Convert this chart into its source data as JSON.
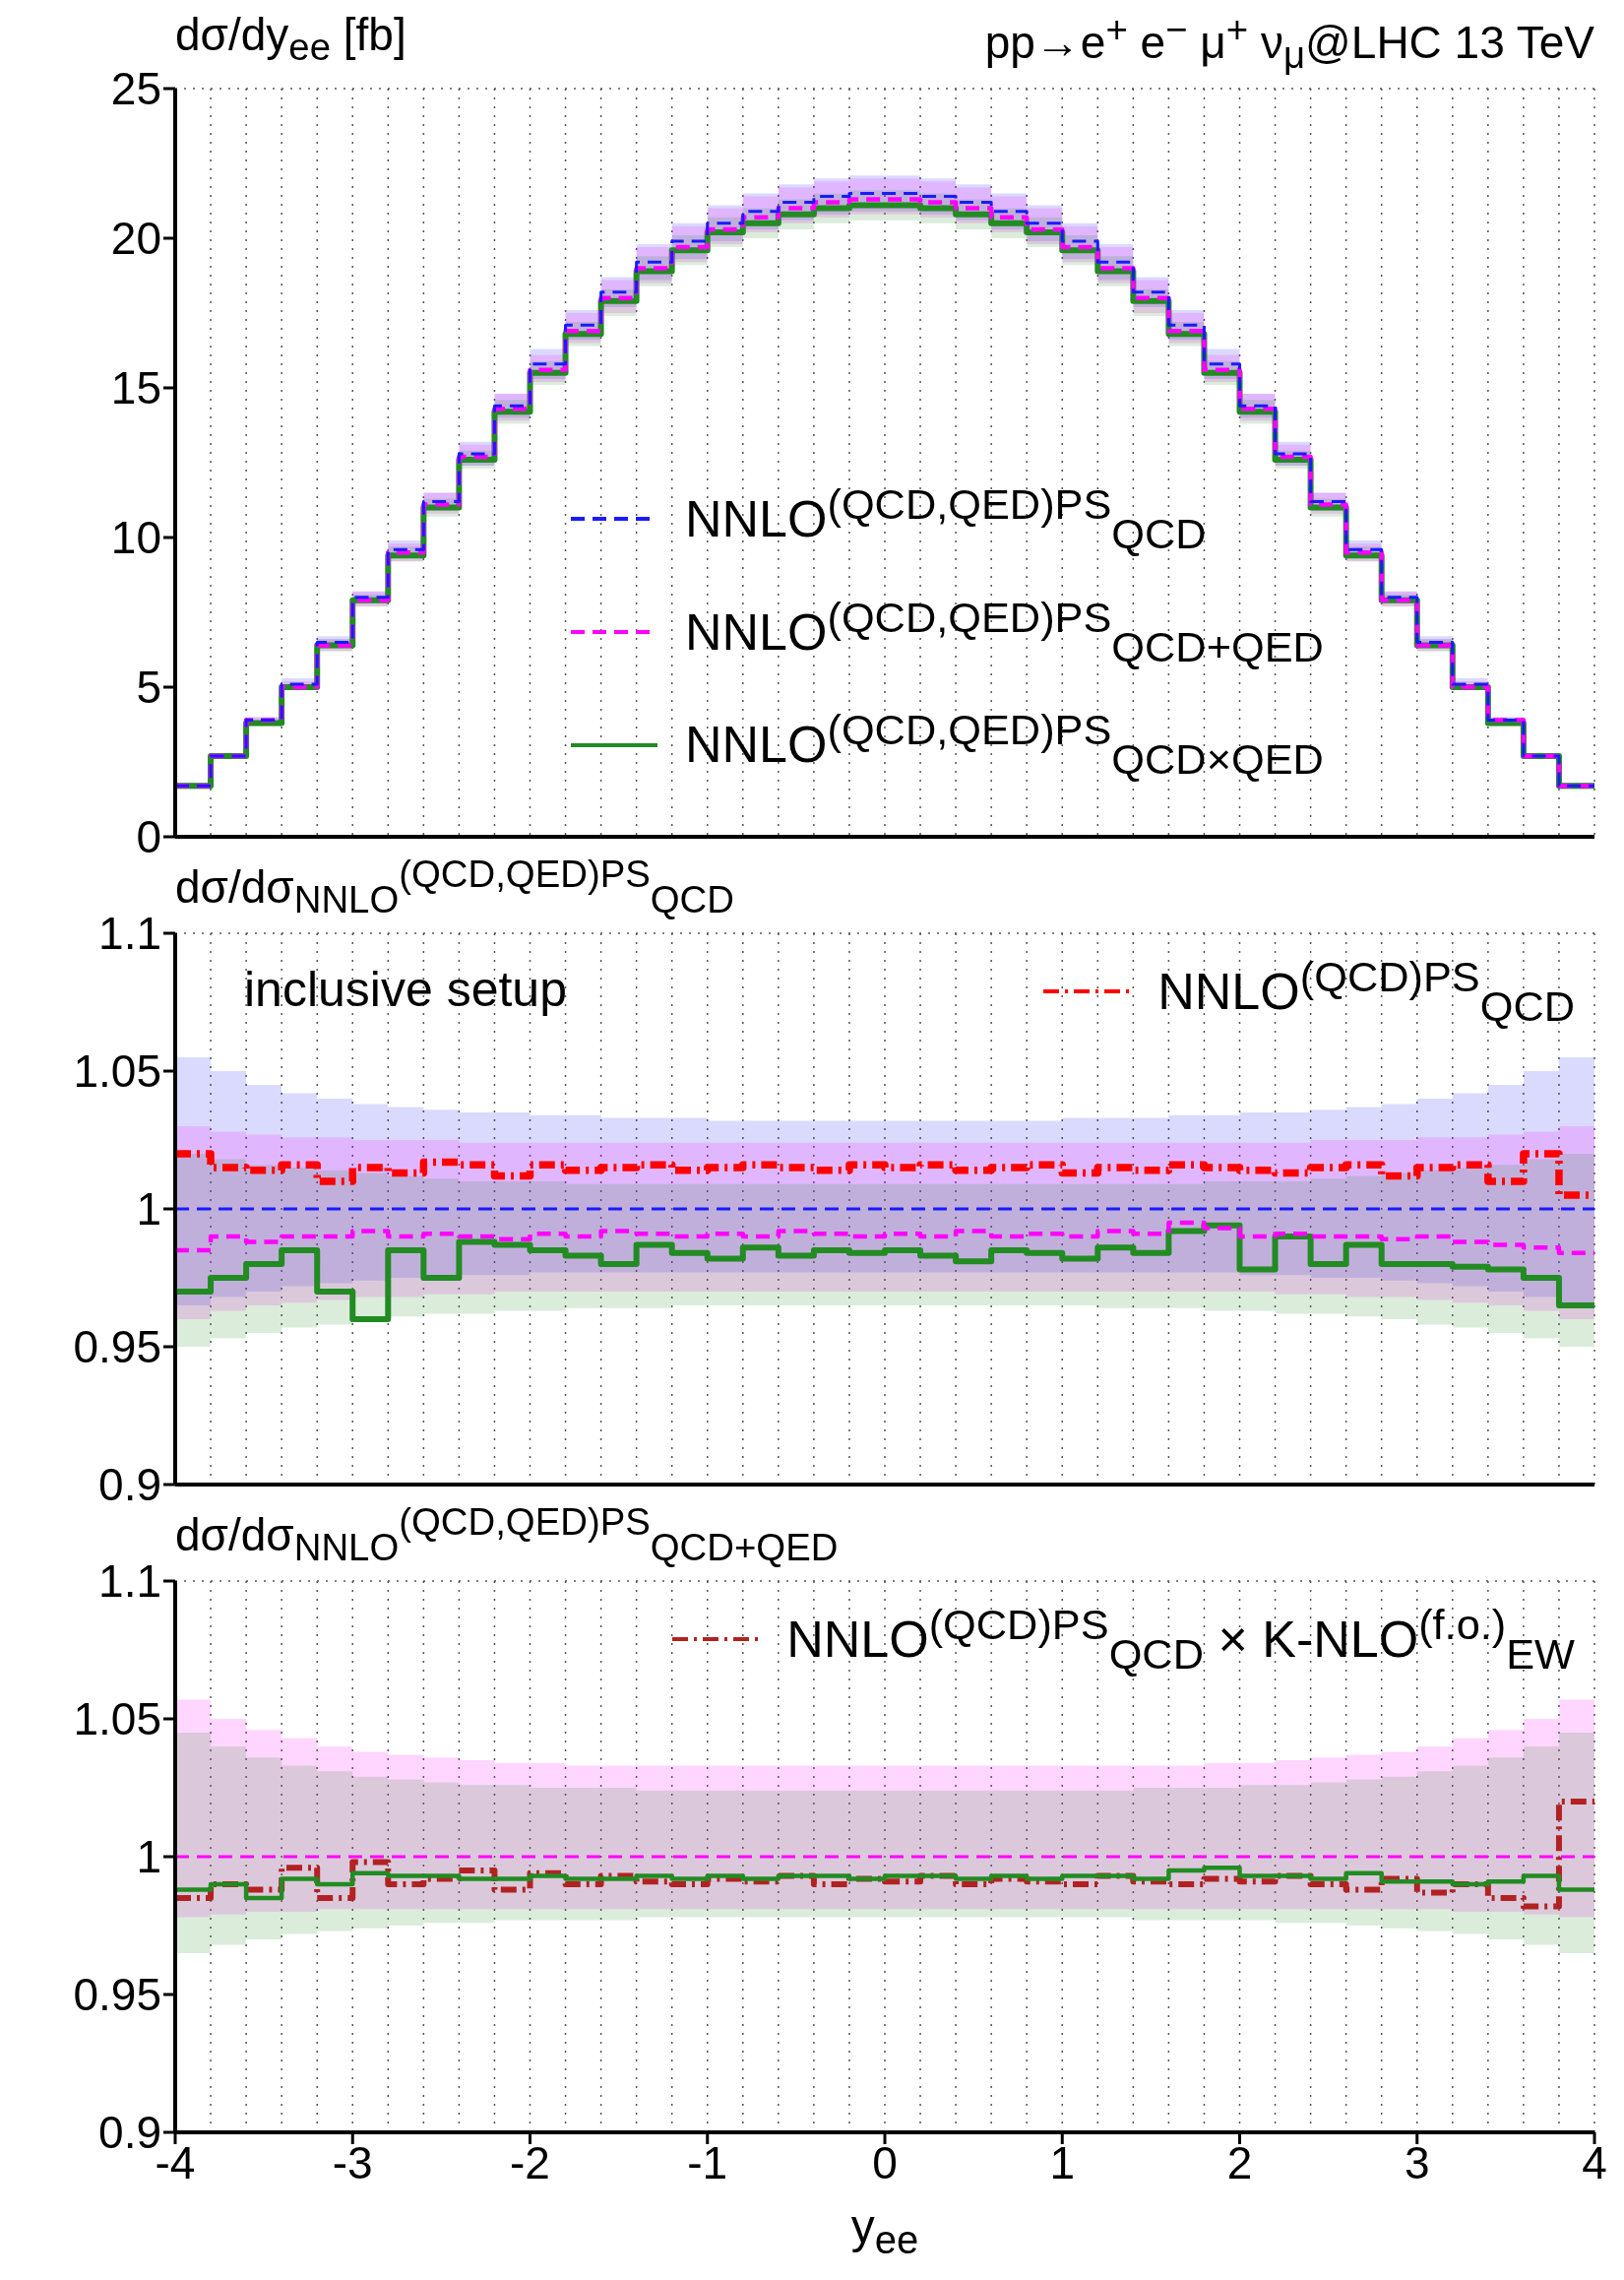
{
  "chart_data": [
    {
      "type": "step",
      "title": "pp→e$^{+}$ e$^{−}$ μ$^{+}$ ν$_{μ}$@LHC 13 TeV",
      "ylabel": "dσ/dy$_{ee}$ [fb]",
      "xlim": [
        -4,
        4
      ],
      "xticks": [
        -4,
        -3,
        -2,
        -1,
        0,
        1,
        2,
        3,
        4
      ],
      "ylim": [
        0,
        25
      ],
      "yticks": [
        0,
        5,
        10,
        15,
        20,
        25
      ],
      "grid": true,
      "legend": "bottom",
      "tick_labels": "y",
      "x": [
        -4,
        -3.8,
        -3.6,
        -3.4,
        -3.2,
        -3,
        -2.8,
        -2.6,
        -2.4,
        -2.2,
        -2,
        -1.8,
        -1.6,
        -1.4,
        -1.2,
        -1,
        -0.8,
        -0.6,
        -0.4,
        -0.2,
        0,
        0.2,
        0.4,
        0.6,
        0.8,
        1,
        1.2,
        1.4,
        1.6,
        1.8,
        2,
        2.2,
        2.4,
        2.6,
        2.8,
        3,
        3.2,
        3.4,
        3.6,
        3.8,
        4
      ],
      "series": [
        {
          "name": "NNLO$^{(QCD,QED)PS}$$_{QCD}$",
          "color": "#1a1aff",
          "line_style": "dashed",
          "values": [
            1.7,
            2.7,
            3.9,
            5.1,
            6.5,
            8,
            9.6,
            11.2,
            12.8,
            14.4,
            15.8,
            17.1,
            18.2,
            19.2,
            19.9,
            20.5,
            20.9,
            21.2,
            21.4,
            21.5,
            21.5,
            21.4,
            21.2,
            20.9,
            20.5,
            19.9,
            19.2,
            18.2,
            17.1,
            15.8,
            14.4,
            12.8,
            11.2,
            9.6,
            8,
            6.5,
            5.1,
            3.9,
            2.7,
            1.7,
            1.7
          ],
          "lower": [
            1.6,
            2.6,
            3.8,
            4.9,
            6.3,
            7.8,
            9.3,
            10.9,
            12.4,
            14,
            15.3,
            16.6,
            17.7,
            18.6,
            19.3,
            19.9,
            20.3,
            20.6,
            20.8,
            20.9,
            20.9,
            20.8,
            20.6,
            20.3,
            19.9,
            19.3,
            18.6,
            17.7,
            16.6,
            15.3,
            14,
            12.4,
            10.9,
            9.3,
            7.8,
            6.3,
            4.9,
            3.8,
            2.6,
            1.6,
            1.6
          ],
          "upper": [
            1.8,
            2.8,
            4,
            5.3,
            6.7,
            8.2,
            9.9,
            11.5,
            13.2,
            14.8,
            16.3,
            17.6,
            18.7,
            19.8,
            20.5,
            21.1,
            21.5,
            21.8,
            22,
            22.1,
            22.1,
            22,
            21.8,
            21.5,
            21.1,
            20.5,
            19.8,
            18.7,
            17.6,
            16.3,
            14.8,
            13.2,
            11.5,
            9.9,
            8.2,
            6.7,
            5.3,
            4,
            2.8,
            1.8,
            1.8
          ]
        },
        {
          "name": "NNLO$^{(QCD,QED)PS}$$_{QCD+QED}$",
          "color": "#ff00ff",
          "line_style": "dashed",
          "values": [
            1.7,
            2.7,
            3.9,
            5,
            6.4,
            7.9,
            9.5,
            11.1,
            12.7,
            14.3,
            15.6,
            16.9,
            18,
            19,
            19.7,
            20.3,
            20.7,
            21,
            21.2,
            21.3,
            21.3,
            21.2,
            21,
            20.7,
            20.3,
            19.7,
            19,
            18,
            16.9,
            15.6,
            14.3,
            12.7,
            11.1,
            9.5,
            7.9,
            6.4,
            5,
            3.9,
            2.7,
            1.7,
            1.7
          ],
          "lower": [
            1.6,
            2.6,
            3.8,
            4.9,
            6.2,
            7.7,
            9.2,
            10.8,
            12.4,
            13.9,
            15.2,
            16.5,
            17.5,
            18.5,
            19.2,
            19.8,
            20.2,
            20.5,
            20.7,
            20.8,
            20.8,
            20.7,
            20.5,
            20.2,
            19.8,
            19.2,
            18.5,
            17.5,
            16.5,
            15.2,
            13.9,
            12.4,
            10.8,
            9.2,
            7.7,
            6.2,
            4.9,
            3.8,
            2.6,
            1.6,
            1.6
          ],
          "upper": [
            1.8,
            2.8,
            4,
            5.2,
            6.6,
            8.2,
            9.8,
            11.5,
            13.1,
            14.8,
            16.1,
            17.5,
            18.6,
            19.7,
            20.4,
            21,
            21.4,
            21.7,
            21.9,
            22,
            22,
            21.9,
            21.7,
            21.4,
            21,
            20.4,
            19.7,
            18.6,
            17.5,
            16.1,
            14.8,
            13.1,
            11.5,
            9.8,
            8.2,
            6.6,
            5.2,
            4,
            2.8,
            1.8,
            1.8
          ]
        },
        {
          "name": "NNLO$^{(QCD,QED)PS}$$_{QCD×QED}$",
          "color": "#228b22",
          "line_style": "solid",
          "values": [
            1.7,
            2.7,
            3.8,
            5,
            6.4,
            7.9,
            9.4,
            11,
            12.6,
            14.2,
            15.5,
            16.8,
            17.9,
            18.9,
            19.6,
            20.2,
            20.5,
            20.8,
            21,
            21.1,
            21.1,
            21,
            20.8,
            20.5,
            20.2,
            19.6,
            18.9,
            17.9,
            16.8,
            15.5,
            14.2,
            12.6,
            11,
            9.4,
            7.9,
            6.4,
            5,
            3.8,
            2.7,
            1.7,
            1.7
          ],
          "lower": [
            1.6,
            2.6,
            3.7,
            4.9,
            6.2,
            7.7,
            9.2,
            10.7,
            12.3,
            13.8,
            15.1,
            16.4,
            17.4,
            18.4,
            19.1,
            19.7,
            20,
            20.3,
            20.5,
            20.6,
            20.6,
            20.5,
            20.3,
            20,
            19.7,
            19.1,
            18.4,
            17.4,
            16.4,
            15.1,
            13.8,
            12.3,
            10.7,
            9.2,
            7.7,
            6.2,
            4.9,
            3.7,
            2.6,
            1.6,
            1.6
          ],
          "upper": [
            1.7,
            2.8,
            3.9,
            5.1,
            6.6,
            8.1,
            9.7,
            11.3,
            12.9,
            14.6,
            15.9,
            17.2,
            18.3,
            19.4,
            20.1,
            20.7,
            21,
            21.3,
            21.5,
            21.6,
            21.6,
            21.5,
            21.3,
            21,
            20.7,
            20.1,
            19.4,
            18.3,
            17.2,
            15.9,
            14.6,
            12.9,
            11.3,
            9.7,
            8.1,
            6.6,
            5.1,
            3.9,
            2.8,
            1.7,
            1.7
          ]
        }
      ]
    },
    {
      "type": "step",
      "ylabel": "dσ/dσ$_{NNLO}$$^{(QCD,QED)PS}$$_{QCD}$",
      "annotations": [
        "inclusive setup"
      ],
      "xlim": [
        -4,
        4
      ],
      "xticks": [
        -4,
        -3,
        -2,
        -1,
        0,
        1,
        2,
        3,
        4
      ],
      "ylim": [
        0.9,
        1.1
      ],
      "yticks": [
        0.9,
        0.95,
        1,
        1.05,
        1.1
      ],
      "grid": true,
      "legend": "top right",
      "tick_labels": "y",
      "x": [
        -4,
        -3.8,
        -3.6,
        -3.4,
        -3.2,
        -3,
        -2.8,
        -2.6,
        -2.4,
        -2.2,
        -2,
        -1.8,
        -1.6,
        -1.4,
        -1.2,
        -1,
        -0.8,
        -0.6,
        -0.4,
        -0.2,
        0,
        0.2,
        0.4,
        0.6,
        0.8,
        1,
        1.2,
        1.4,
        1.6,
        1.8,
        2,
        2.2,
        2.4,
        2.6,
        2.8,
        3,
        3.2,
        3.4,
        3.6,
        3.8,
        4
      ],
      "series": [
        {
          "color": "#1a1aff",
          "line_style": "dashed",
          "values": [
            1,
            1,
            1,
            1,
            1,
            1,
            1,
            1,
            1,
            1,
            1,
            1,
            1,
            1,
            1,
            1,
            1,
            1,
            1,
            1,
            1,
            1,
            1,
            1,
            1,
            1,
            1,
            1,
            1,
            1,
            1,
            1,
            1,
            1,
            1,
            1,
            1,
            1,
            1,
            1,
            1
          ],
          "lower": [
            0.965,
            0.968,
            0.97,
            0.972,
            0.973,
            0.974,
            0.975,
            0.975,
            0.976,
            0.976,
            0.977,
            0.977,
            0.977,
            0.977,
            0.977,
            0.977,
            0.977,
            0.977,
            0.977,
            0.977,
            0.977,
            0.977,
            0.977,
            0.977,
            0.977,
            0.977,
            0.977,
            0.977,
            0.977,
            0.977,
            0.976,
            0.976,
            0.975,
            0.975,
            0.974,
            0.973,
            0.972,
            0.97,
            0.968,
            0.965,
            0.965
          ],
          "upper": [
            1.055,
            1.05,
            1.045,
            1.042,
            1.04,
            1.038,
            1.037,
            1.036,
            1.035,
            1.035,
            1.034,
            1.034,
            1.033,
            1.033,
            1.033,
            1.032,
            1.032,
            1.032,
            1.032,
            1.032,
            1.032,
            1.032,
            1.032,
            1.032,
            1.032,
            1.033,
            1.033,
            1.033,
            1.034,
            1.034,
            1.035,
            1.035,
            1.036,
            1.037,
            1.038,
            1.04,
            1.042,
            1.045,
            1.05,
            1.055,
            1.055
          ]
        },
        {
          "color": "#ff00ff",
          "line_style": "dashed",
          "values": [
            0.985,
            0.99,
            0.988,
            0.99,
            0.99,
            0.992,
            0.99,
            0.991,
            0.99,
            0.989,
            0.991,
            0.99,
            0.992,
            0.991,
            0.99,
            0.991,
            0.99,
            0.992,
            0.991,
            0.99,
            0.991,
            0.99,
            0.992,
            0.99,
            0.991,
            0.99,
            0.992,
            0.991,
            0.995,
            0.993,
            0.99,
            0.991,
            0.99,
            0.99,
            0.989,
            0.99,
            0.988,
            0.987,
            0.986,
            0.984,
            0.984
          ],
          "lower": [
            0.96,
            0.963,
            0.965,
            0.966,
            0.967,
            0.968,
            0.968,
            0.969,
            0.969,
            0.97,
            0.97,
            0.97,
            0.97,
            0.97,
            0.97,
            0.97,
            0.97,
            0.97,
            0.97,
            0.97,
            0.97,
            0.97,
            0.97,
            0.97,
            0.97,
            0.97,
            0.97,
            0.97,
            0.97,
            0.97,
            0.97,
            0.969,
            0.969,
            0.968,
            0.968,
            0.967,
            0.966,
            0.965,
            0.963,
            0.96,
            0.96
          ],
          "upper": [
            1.03,
            1.028,
            1.027,
            1.026,
            1.026,
            1.025,
            1.025,
            1.025,
            1.024,
            1.024,
            1.024,
            1.024,
            1.024,
            1.024,
            1.024,
            1.024,
            1.024,
            1.024,
            1.024,
            1.024,
            1.024,
            1.024,
            1.024,
            1.024,
            1.024,
            1.024,
            1.024,
            1.024,
            1.024,
            1.024,
            1.024,
            1.024,
            1.025,
            1.025,
            1.025,
            1.026,
            1.026,
            1.027,
            1.028,
            1.03,
            1.03
          ]
        },
        {
          "color": "#228b22",
          "line_style": "solid",
          "values": [
            0.97,
            0.975,
            0.98,
            0.985,
            0.97,
            0.96,
            0.985,
            0.975,
            0.988,
            0.987,
            0.985,
            0.983,
            0.98,
            0.987,
            0.984,
            0.982,
            0.986,
            0.983,
            0.985,
            0.984,
            0.985,
            0.983,
            0.981,
            0.985,
            0.984,
            0.982,
            0.986,
            0.984,
            0.992,
            0.994,
            0.978,
            0.99,
            0.98,
            0.987,
            0.98,
            0.98,
            0.979,
            0.978,
            0.975,
            0.965,
            0.965
          ],
          "lower": [
            0.95,
            0.953,
            0.955,
            0.957,
            0.958,
            0.96,
            0.961,
            0.962,
            0.962,
            0.963,
            0.963,
            0.964,
            0.964,
            0.964,
            0.965,
            0.965,
            0.965,
            0.965,
            0.965,
            0.965,
            0.965,
            0.965,
            0.965,
            0.965,
            0.965,
            0.965,
            0.964,
            0.964,
            0.964,
            0.963,
            0.963,
            0.962,
            0.962,
            0.961,
            0.96,
            0.958,
            0.957,
            0.955,
            0.953,
            0.95,
            0.95
          ],
          "upper": [
            1.02,
            1.018,
            1.016,
            1.015,
            1.014,
            1.013,
            1.012,
            1.011,
            1.01,
            1.01,
            1.01,
            1.009,
            1.009,
            1.009,
            1.009,
            1.009,
            1.009,
            1.009,
            1.009,
            1.009,
            1.009,
            1.009,
            1.009,
            1.009,
            1.009,
            1.009,
            1.009,
            1.009,
            1.009,
            1.01,
            1.01,
            1.01,
            1.011,
            1.012,
            1.013,
            1.014,
            1.015,
            1.016,
            1.018,
            1.02,
            1.02
          ]
        },
        {
          "name": "NNLO$^{(QCD)PS}$$_{QCD}$",
          "color": "#ff0000",
          "line_style": "dashdot",
          "values": [
            1.02,
            1.015,
            1.014,
            1.016,
            1.01,
            1.015,
            1.013,
            1.017,
            1.016,
            1.012,
            1.016,
            1.014,
            1.015,
            1.016,
            1.014,
            1.015,
            1.016,
            1.015,
            1.014,
            1.016,
            1.015,
            1.016,
            1.014,
            1.015,
            1.016,
            1.013,
            1.015,
            1.014,
            1.016,
            1.015,
            1.014,
            1.013,
            1.015,
            1.016,
            1.012,
            1.015,
            1.016,
            1.01,
            1.02,
            1.005,
            1.005
          ]
        }
      ]
    },
    {
      "type": "step",
      "ylabel": "dσ/dσ$_{NNLO}$$^{(QCD,QED)PS}$$_{QCD+QED}$",
      "xlabel": "y$_{ee}$",
      "xlim": [
        -4,
        4
      ],
      "xticks": [
        -4,
        -3,
        -2,
        -1,
        0,
        1,
        2,
        3,
        4
      ],
      "ylim": [
        0.9,
        1.1
      ],
      "yticks": [
        0.9,
        0.95,
        1,
        1.05,
        1.1
      ],
      "grid": true,
      "legend": "top right",
      "x": [
        -4,
        -3.8,
        -3.6,
        -3.4,
        -3.2,
        -3,
        -2.8,
        -2.6,
        -2.4,
        -2.2,
        -2,
        -1.8,
        -1.6,
        -1.4,
        -1.2,
        -1,
        -0.8,
        -0.6,
        -0.4,
        -0.2,
        0,
        0.2,
        0.4,
        0.6,
        0.8,
        1,
        1.2,
        1.4,
        1.6,
        1.8,
        2,
        2.2,
        2.4,
        2.6,
        2.8,
        3,
        3.2,
        3.4,
        3.6,
        3.8,
        4
      ],
      "series": [
        {
          "color": "#ff00ff",
          "line_style": "dashed",
          "values": [
            1,
            1,
            1,
            1,
            1,
            1,
            1,
            1,
            1,
            1,
            1,
            1,
            1,
            1,
            1,
            1,
            1,
            1,
            1,
            1,
            1,
            1,
            1,
            1,
            1,
            1,
            1,
            1,
            1,
            1,
            1,
            1,
            1,
            1,
            1,
            1,
            1,
            1,
            1,
            1,
            1
          ],
          "lower": [
            0.978,
            0.979,
            0.98,
            0.98,
            0.981,
            0.981,
            0.981,
            0.981,
            0.981,
            0.981,
            0.981,
            0.981,
            0.981,
            0.981,
            0.981,
            0.981,
            0.981,
            0.981,
            0.981,
            0.981,
            0.981,
            0.981,
            0.981,
            0.981,
            0.981,
            0.981,
            0.981,
            0.981,
            0.981,
            0.981,
            0.981,
            0.981,
            0.981,
            0.981,
            0.981,
            0.981,
            0.98,
            0.98,
            0.979,
            0.978,
            0.978
          ],
          "upper": [
            1.057,
            1.05,
            1.046,
            1.043,
            1.04,
            1.038,
            1.037,
            1.036,
            1.035,
            1.034,
            1.034,
            1.033,
            1.033,
            1.033,
            1.033,
            1.033,
            1.033,
            1.033,
            1.033,
            1.033,
            1.033,
            1.033,
            1.033,
            1.033,
            1.033,
            1.033,
            1.033,
            1.033,
            1.033,
            1.034,
            1.034,
            1.035,
            1.036,
            1.037,
            1.038,
            1.04,
            1.043,
            1.046,
            1.05,
            1.057,
            1.057
          ]
        },
        {
          "color": "#228b22",
          "line_style": "solid",
          "values": [
            0.988,
            0.99,
            0.985,
            0.992,
            0.99,
            0.994,
            0.993,
            0.993,
            0.992,
            0.992,
            0.993,
            0.992,
            0.992,
            0.993,
            0.992,
            0.993,
            0.992,
            0.993,
            0.993,
            0.992,
            0.993,
            0.993,
            0.992,
            0.993,
            0.992,
            0.993,
            0.993,
            0.992,
            0.995,
            0.996,
            0.993,
            0.993,
            0.992,
            0.994,
            0.991,
            0.991,
            0.99,
            0.991,
            0.993,
            0.988,
            0.988
          ],
          "lower": [
            0.965,
            0.968,
            0.97,
            0.972,
            0.973,
            0.974,
            0.975,
            0.976,
            0.976,
            0.977,
            0.977,
            0.977,
            0.977,
            0.978,
            0.978,
            0.978,
            0.978,
            0.978,
            0.978,
            0.978,
            0.978,
            0.978,
            0.978,
            0.978,
            0.978,
            0.978,
            0.978,
            0.977,
            0.977,
            0.977,
            0.977,
            0.976,
            0.976,
            0.975,
            0.974,
            0.973,
            0.972,
            0.97,
            0.968,
            0.965,
            0.965
          ],
          "upper": [
            1.045,
            1.04,
            1.036,
            1.033,
            1.031,
            1.029,
            1.028,
            1.027,
            1.026,
            1.026,
            1.025,
            1.025,
            1.025,
            1.024,
            1.024,
            1.024,
            1.024,
            1.024,
            1.024,
            1.024,
            1.024,
            1.024,
            1.024,
            1.024,
            1.024,
            1.024,
            1.024,
            1.025,
            1.025,
            1.025,
            1.026,
            1.026,
            1.027,
            1.028,
            1.029,
            1.031,
            1.033,
            1.036,
            1.04,
            1.045,
            1.045
          ]
        },
        {
          "name": "NNLO$^{(QCD)PS}$$_{QCD}$ × K-NLO$^{(f.o.)}$$_{EW}$",
          "color": "#b22222",
          "line_style": "dashdot",
          "values": [
            0.985,
            0.99,
            0.988,
            0.996,
            0.985,
            0.998,
            0.99,
            0.992,
            0.995,
            0.988,
            0.994,
            0.99,
            0.993,
            0.991,
            0.99,
            0.992,
            0.991,
            0.993,
            0.99,
            0.992,
            0.991,
            0.993,
            0.99,
            0.992,
            0.991,
            0.99,
            0.993,
            0.991,
            0.99,
            0.992,
            0.991,
            0.993,
            0.99,
            0.988,
            0.992,
            0.987,
            0.99,
            0.985,
            0.982,
            1.02,
            1.02
          ]
        }
      ]
    }
  ]
}
